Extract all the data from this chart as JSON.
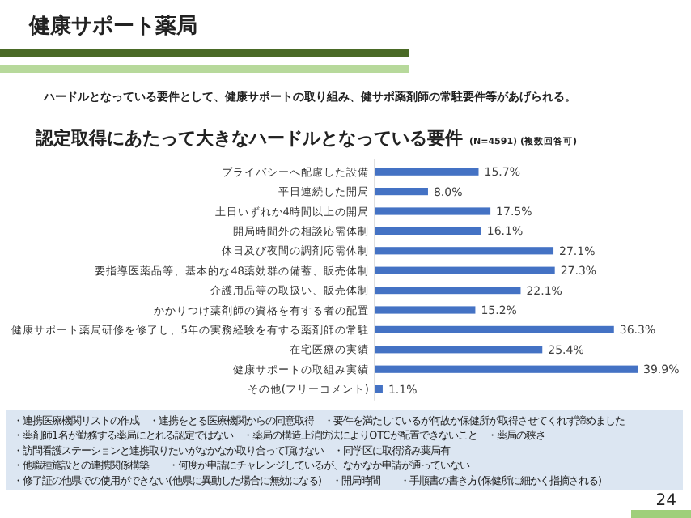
{
  "chart_data": {
    "type": "bar",
    "orientation": "horizontal",
    "title": "認定取得にあたって大きなハードルとなっている要件",
    "subtitle": "(N=4591) (複数回答可)",
    "categories": [
      "プライバシーへ配慮した設備",
      "平日連続した開局",
      "土日いずれか4時間以上の開局",
      "開局時間外の相談応需体制",
      "休日及び夜間の調剤応需体制",
      "要指導医薬品等、基本的な48薬効群の備蓄、販売体制",
      "介護用品等の取扱い、販売体制",
      "かかりつけ薬剤師の資格を有する者の配置",
      "健康サポート薬局研修を修了し、5年の実務経験を有する薬剤師の常駐",
      "在宅医療の実績",
      "健康サポートの取組み実績",
      "その他(フリーコメント)"
    ],
    "values": [
      15.7,
      8.0,
      17.5,
      16.1,
      27.1,
      27.3,
      22.1,
      15.2,
      36.3,
      25.4,
      39.9,
      1.1
    ],
    "value_labels": [
      "15.7%",
      "8.0%",
      "17.5%",
      "16.1%",
      "27.1%",
      "27.3%",
      "22.1%",
      "15.2%",
      "36.3%",
      "25.4%",
      "39.9%",
      "1.1%"
    ],
    "color": "#4472c4",
    "annotations": [
      "健康サポート薬局",
      "ハードルとなっている要件として、健康サポートの取り組み、健サポ薬剤師の常駐要件等があげられる。",
      "・連携医療機関リストの作成　・連携をとる医療機関からの同意取得　・要件を満たしているが何故か保健所が取得させてくれず諦めました",
      "・薬剤師1名が勤務する薬局にとれる認定ではない　・薬局の構造上消防法によりOTCが配置できないこと　・薬局の狭さ",
      "・訪問看護ステーションと連携取りたいがなかなか取り合って頂けない　・同学区に取得済み薬局有",
      "・他職種施設との連携関係構築　　・何度か申請にチャレンジしているが、なかなか申請が通っていない",
      "・修了証の他県での使用ができない(他県に異動した場合に無効になる)　・開局時間　　・手順書の書き方(保健所に細かく指摘される)",
      "24"
    ]
  }
}
